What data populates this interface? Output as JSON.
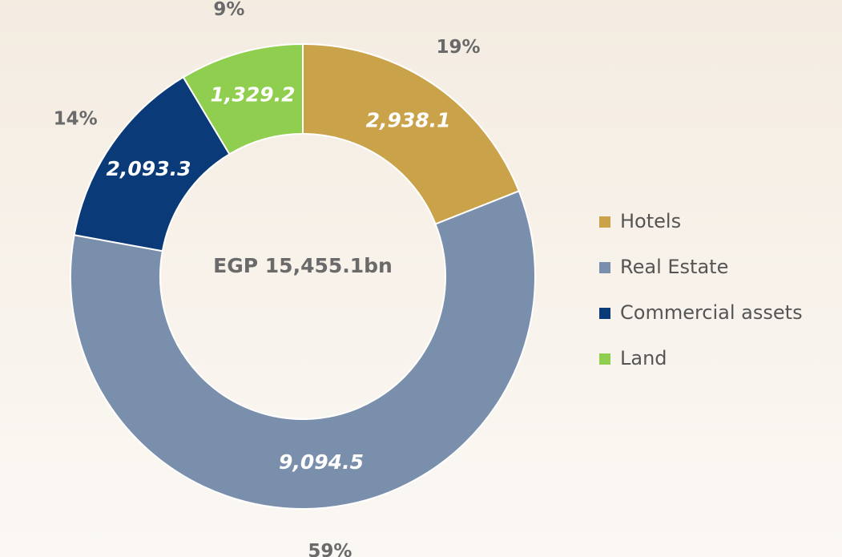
{
  "chart_data": {
    "type": "donut",
    "center_label": "EGP 15,455.1bn",
    "categories": [
      "Hotels",
      "Real Estate",
      "Commercial assets",
      "Land"
    ],
    "values": [
      2938.1,
      9094.5,
      2093.3,
      1329.2
    ],
    "value_labels": [
      "2,938.1",
      "9,094.5",
      "2,093.3",
      "1,329.2"
    ],
    "percent_labels": [
      "19%",
      "59%",
      "14%",
      "9%"
    ],
    "colors": [
      "#c9a24a",
      "#7a8fab",
      "#0b3a78",
      "#8fce4e"
    ],
    "legend": "right"
  }
}
